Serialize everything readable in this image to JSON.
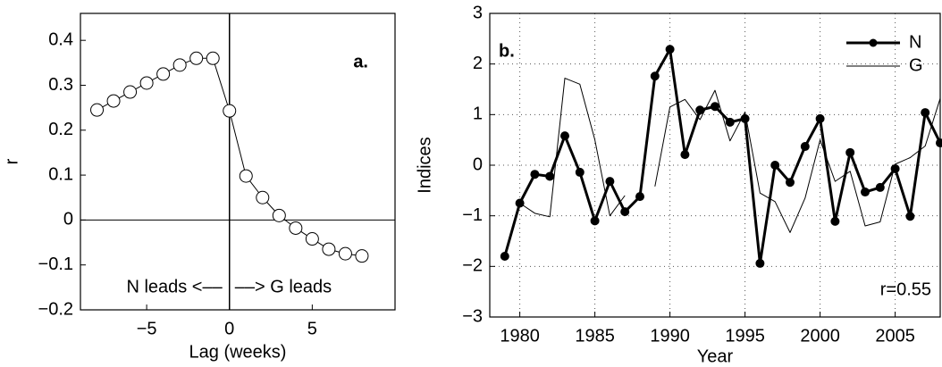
{
  "chart_data": [
    {
      "type": "line",
      "panel_label": "a.",
      "xlabel": "Lag (weeks)",
      "ylabel": "r",
      "annotations": [
        "N leads <––",
        "––> G leads"
      ],
      "x": [
        -8,
        -7,
        -6,
        -5,
        -4,
        -3,
        -2,
        -1,
        0,
        1,
        2,
        3,
        4,
        5,
        6,
        7,
        8
      ],
      "series": [
        {
          "color": "#000000",
          "marker": "open-circle",
          "line_width": 1,
          "values": [
            0.245,
            0.265,
            0.285,
            0.305,
            0.325,
            0.345,
            0.36,
            0.36,
            0.243,
            0.098,
            0.05,
            0.01,
            -0.018,
            -0.042,
            -0.065,
            -0.075,
            -0.08
          ]
        }
      ],
      "xlim": [
        -9,
        10
      ],
      "ylim": [
        -0.2,
        0.46
      ],
      "xticks": [
        {
          "value": -5,
          "label": "−5"
        },
        0,
        5
      ],
      "yticks": [
        {
          "value": -0.2,
          "label": "−0.2"
        },
        {
          "value": -0.1,
          "label": "−0.1"
        },
        0,
        0.1,
        0.2,
        0.3,
        0.4
      ],
      "zero_lines": true,
      "grid": false
    },
    {
      "type": "line",
      "panel_label": "b.",
      "xlabel": "Year",
      "ylabel": "Indices",
      "annotations": [
        "r=0.55"
      ],
      "x": [
        1979,
        1980,
        1981,
        1982,
        1983,
        1984,
        1985,
        1986,
        1987,
        1988,
        1989,
        1990,
        1991,
        1992,
        1993,
        1994,
        1995,
        1996,
        1997,
        1998,
        1999,
        2000,
        2001,
        2002,
        2003,
        2004,
        2005,
        2006,
        2007,
        2008
      ],
      "series": [
        {
          "name": "N",
          "color": "#000000",
          "marker": "filled-circle",
          "line_width": 3,
          "values": [
            -1.8,
            -0.75,
            -0.18,
            -0.22,
            0.58,
            -0.14,
            -1.1,
            -0.32,
            -0.92,
            -0.62,
            1.76,
            2.29,
            0.21,
            1.09,
            1.16,
            0.85,
            0.92,
            -1.94,
            0,
            -0.34,
            0.37,
            0.92,
            -1.11,
            0.25,
            -0.53,
            -0.44,
            -0.07,
            -1.01,
            1.04,
            0.44
          ]
        },
        {
          "name": "G",
          "color": "#000000",
          "marker": "none",
          "line_width": 1,
          "values": [
            null,
            -0.75,
            -0.95,
            -1.02,
            1.72,
            1.6,
            0.5,
            -1.0,
            -0.6,
            null,
            -0.42,
            1.15,
            1.3,
            0.9,
            1.48,
            0.48,
            1.05,
            -0.55,
            -0.72,
            -1.33,
            -0.65,
            0.5,
            -0.32,
            -0.12,
            -1.2,
            -1.12,
            0.02,
            0.15,
            0.38,
            1.32
          ]
        }
      ],
      "xlim": [
        1978,
        2008
      ],
      "ylim": [
        -3,
        3
      ],
      "xticks": [
        1980,
        1985,
        1990,
        1995,
        2000,
        2005
      ],
      "yticks": [
        {
          "value": -3,
          "label": "−3"
        },
        {
          "value": -2,
          "label": "−2"
        },
        {
          "value": -1,
          "label": "−1"
        },
        0,
        1,
        2,
        3
      ],
      "zero_lines": false,
      "grid": true,
      "legend": "upper-right"
    }
  ]
}
